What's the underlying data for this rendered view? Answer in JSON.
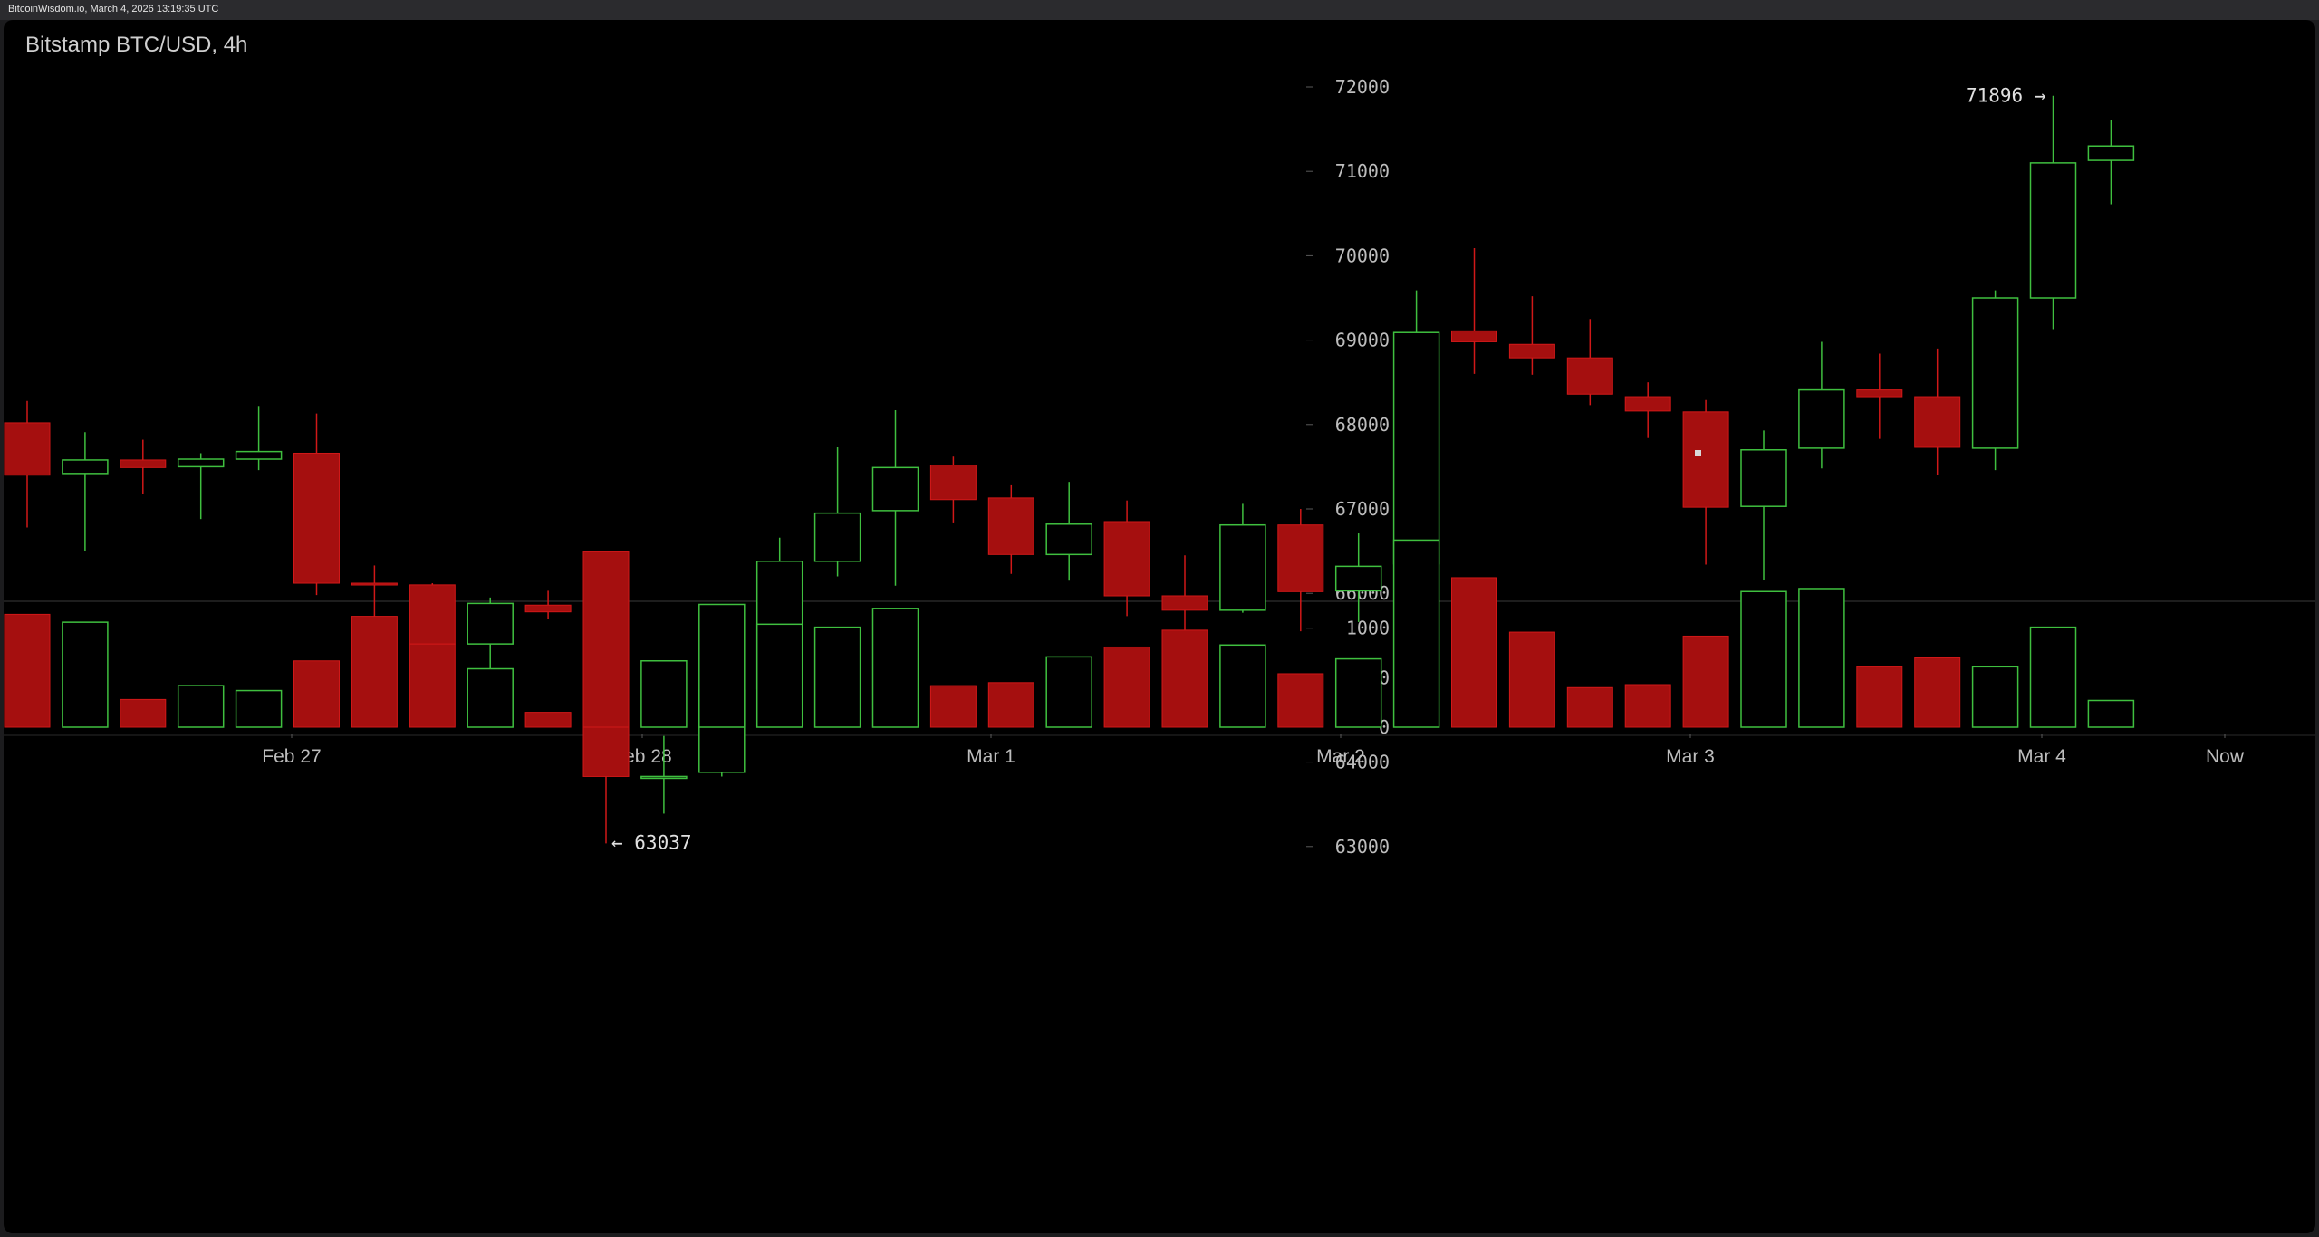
{
  "source_line": "BitcoinWisdom.io, March 4, 2026 13:19:35 UTC",
  "chart_data": {
    "type": "candlestick",
    "title": "Bitstamp BTC/USD, 4h",
    "price_axis": {
      "ticks": [
        63000,
        64000,
        65000,
        66000,
        67000,
        68000,
        69000,
        70000,
        71000,
        72000
      ],
      "range": [
        62000,
        73500
      ]
    },
    "volume_axis": {
      "ticks": [
        0,
        1000
      ],
      "range": [
        0,
        1950
      ]
    },
    "time_labels": [
      "Feb 27",
      "Feb 28",
      "Mar 1",
      "Mar 2",
      "Mar 3",
      "Mar 4",
      "Now"
    ],
    "colors": {
      "up": "#3fbf3f",
      "down": "#a50f0f",
      "down_outline": "#d01818",
      "text": "#cfcfcf",
      "grid_label": "#bdbdbd"
    },
    "annotations": [
      {
        "text": "71896 →",
        "price": 71896,
        "candle": 35,
        "side": "left"
      },
      {
        "text": "← 63037",
        "price": 63037,
        "candle": 10,
        "side": "right"
      }
    ],
    "candles": [
      {
        "o": 68020,
        "h": 68280,
        "l": 66780,
        "c": 67400,
        "v": 1140
      },
      {
        "o": 67420,
        "h": 67910,
        "l": 66500,
        "c": 67580,
        "v": 1060
      },
      {
        "o": 67580,
        "h": 67820,
        "l": 67180,
        "c": 67490,
        "v": 280
      },
      {
        "o": 67500,
        "h": 67660,
        "l": 66880,
        "c": 67590,
        "v": 420
      },
      {
        "o": 67590,
        "h": 68220,
        "l": 67460,
        "c": 67680,
        "v": 370
      },
      {
        "o": 67660,
        "h": 68130,
        "l": 65980,
        "c": 66120,
        "v": 670
      },
      {
        "o": 66120,
        "h": 66330,
        "l": 65660,
        "c": 66100,
        "v": 1120
      },
      {
        "o": 66100,
        "h": 66120,
        "l": 65140,
        "c": 65400,
        "v": 840
      },
      {
        "o": 65400,
        "h": 65950,
        "l": 64940,
        "c": 65880,
        "v": 590
      },
      {
        "o": 65860,
        "h": 66030,
        "l": 65700,
        "c": 65780,
        "v": 150
      },
      {
        "o": 65780,
        "h": 65830,
        "l": 63037,
        "c": 63830,
        "v": 1770
      },
      {
        "o": 63830,
        "h": 64310,
        "l": 63390,
        "c": 63830,
        "v": 670
      },
      {
        "o": 63880,
        "h": 65370,
        "l": 63830,
        "c": 64850,
        "v": 1240
      },
      {
        "o": 64870,
        "h": 66660,
        "l": 64690,
        "c": 66380,
        "v": 1040
      },
      {
        "o": 66380,
        "h": 67730,
        "l": 66200,
        "c": 66950,
        "v": 1010
      },
      {
        "o": 66980,
        "h": 68170,
        "l": 66090,
        "c": 67490,
        "v": 1200
      },
      {
        "o": 67520,
        "h": 67620,
        "l": 66840,
        "c": 67110,
        "v": 420
      },
      {
        "o": 67130,
        "h": 67280,
        "l": 66230,
        "c": 66460,
        "v": 450
      },
      {
        "o": 66460,
        "h": 67320,
        "l": 66150,
        "c": 66820,
        "v": 710
      },
      {
        "o": 66850,
        "h": 67100,
        "l": 65730,
        "c": 65970,
        "v": 810
      },
      {
        "o": 65970,
        "h": 66450,
        "l": 65070,
        "c": 65800,
        "v": 980
      },
      {
        "o": 65800,
        "h": 67060,
        "l": 65770,
        "c": 66810,
        "v": 830
      },
      {
        "o": 66810,
        "h": 67000,
        "l": 65550,
        "c": 66020,
        "v": 540
      },
      {
        "o": 66030,
        "h": 66710,
        "l": 65660,
        "c": 66320,
        "v": 690
      },
      {
        "o": 66350,
        "h": 69590,
        "l": 65270,
        "c": 69090,
        "v": 1890
      },
      {
        "o": 69110,
        "h": 70090,
        "l": 68600,
        "c": 68980,
        "v": 1510
      },
      {
        "o": 68950,
        "h": 69520,
        "l": 68590,
        "c": 68790,
        "v": 960
      },
      {
        "o": 68790,
        "h": 69250,
        "l": 68230,
        "c": 68360,
        "v": 400
      },
      {
        "o": 68330,
        "h": 68500,
        "l": 67840,
        "c": 68160,
        "v": 430
      },
      {
        "o": 68150,
        "h": 68290,
        "l": 66340,
        "c": 67020,
        "v": 920
      },
      {
        "o": 67030,
        "h": 67930,
        "l": 66160,
        "c": 67700,
        "v": 1370
      },
      {
        "o": 67720,
        "h": 68980,
        "l": 67480,
        "c": 68410,
        "v": 1400
      },
      {
        "o": 68410,
        "h": 68840,
        "l": 67830,
        "c": 68330,
        "v": 610
      },
      {
        "o": 68330,
        "h": 68900,
        "l": 67400,
        "c": 67730,
        "v": 700
      },
      {
        "o": 67720,
        "h": 69590,
        "l": 67460,
        "c": 69500,
        "v": 610
      },
      {
        "o": 69500,
        "h": 71896,
        "l": 69130,
        "c": 71100,
        "v": 1010
      },
      {
        "o": 71130,
        "h": 71610,
        "l": 70610,
        "c": 71300,
        "v": 270
      }
    ]
  }
}
